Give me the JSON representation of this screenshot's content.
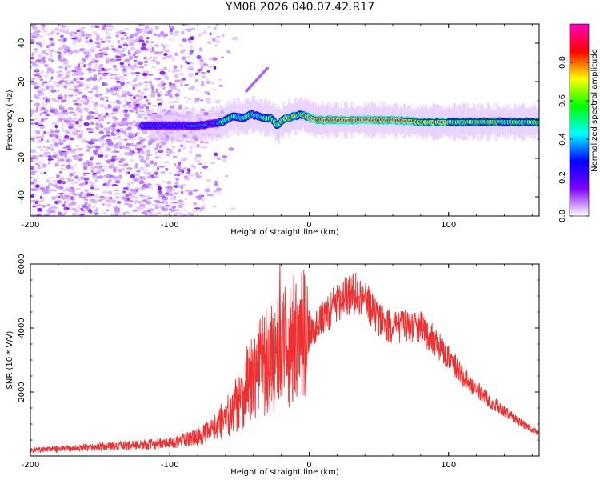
{
  "page_title": "YM08.2026.040.07.42.R17",
  "chart_data": [
    {
      "type": "heatmap",
      "title": "YM08.2026.040.07.42.R17",
      "xlabel": "Height of straight line (km)",
      "ylabel": "Frequency (Hz)",
      "xlim": [
        -200,
        165
      ],
      "ylim": [
        -50,
        50
      ],
      "x_ticks": [
        -200,
        -100,
        0,
        100
      ],
      "x_tick_labels": [
        "-200",
        "-100",
        "0",
        "100"
      ],
      "y_ticks": [
        -40,
        -20,
        0,
        20,
        40
      ],
      "y_tick_labels": [
        "-40",
        "-20",
        "0",
        "20",
        "40"
      ],
      "colorbar": {
        "label": "Normalized spectral amplitude",
        "range": [
          0,
          1
        ],
        "ticks": [
          0.0,
          0.2,
          0.4,
          0.6,
          0.8
        ],
        "tick_labels": [
          "0.0",
          "0.2",
          "0.4",
          "0.6",
          "0.8"
        ],
        "colors": [
          "#ffffff",
          "#8000ff",
          "#0000ff",
          "#00ffff",
          "#00ff00",
          "#ffff00",
          "#ff0000",
          "#ff00c0"
        ]
      },
      "noise_region_end_km": -65,
      "ridge": {
        "x": [
          -122,
          -110,
          -100,
          -90,
          -80,
          -70,
          -62,
          -55,
          -48,
          -42,
          -37,
          -32,
          -27,
          -23,
          -19,
          -15,
          -10,
          -6,
          -2,
          5,
          20,
          40,
          60,
          80,
          88,
          95,
          120,
          140,
          165
        ],
        "y": [
          -3,
          -3,
          -3,
          -3,
          -3,
          -2,
          -1,
          2,
          1,
          3,
          2,
          1,
          1,
          -3,
          0,
          1,
          2,
          3,
          2,
          0,
          0,
          0,
          0,
          -1,
          -1,
          -1,
          -1,
          -1,
          -1
        ]
      },
      "secondary_streak": {
        "x": [
          -45,
          -30
        ],
        "y": [
          15,
          27
        ]
      }
    },
    {
      "type": "line",
      "title": "",
      "xlabel": "Height of straight line (km)",
      "ylabel": "SNR (10 * V/V)",
      "xlim": [
        -200,
        165
      ],
      "ylim": [
        0,
        6000
      ],
      "x_ticks": [
        -200,
        -100,
        0,
        100
      ],
      "x_tick_labels": [
        "-200",
        "-100",
        "0",
        "100"
      ],
      "y_ticks": [
        2000,
        4000,
        6000
      ],
      "y_tick_labels": [
        "2000",
        "4000",
        "6000"
      ],
      "line_color": "#f03030",
      "envelope": {
        "x": [
          -200,
          -150,
          -100,
          -80,
          -70,
          -60,
          -55,
          -50,
          -45,
          -40,
          -35,
          -30,
          -25,
          -20,
          -15,
          -10,
          -5,
          0,
          10,
          20,
          30,
          35,
          40,
          50,
          60,
          70,
          80,
          90,
          100,
          110,
          120,
          130,
          140,
          150,
          165
        ],
        "y": [
          180,
          280,
          400,
          600,
          800,
          1200,
          1400,
          1700,
          2100,
          2400,
          2600,
          2800,
          2900,
          3000,
          3200,
          3300,
          3500,
          3800,
          4300,
          4800,
          5100,
          5100,
          4900,
          4300,
          4000,
          4100,
          4000,
          3600,
          3100,
          2500,
          2100,
          1700,
          1400,
          1100,
          700
        ]
      },
      "spikes": [
        {
          "x": -21,
          "y": 6000
        },
        {
          "x": -11,
          "y": 5700
        },
        {
          "x": -26,
          "y": 4300
        },
        {
          "x": -31,
          "y": 3900
        },
        {
          "x": -55,
          "y": 1700
        }
      ]
    }
  ]
}
